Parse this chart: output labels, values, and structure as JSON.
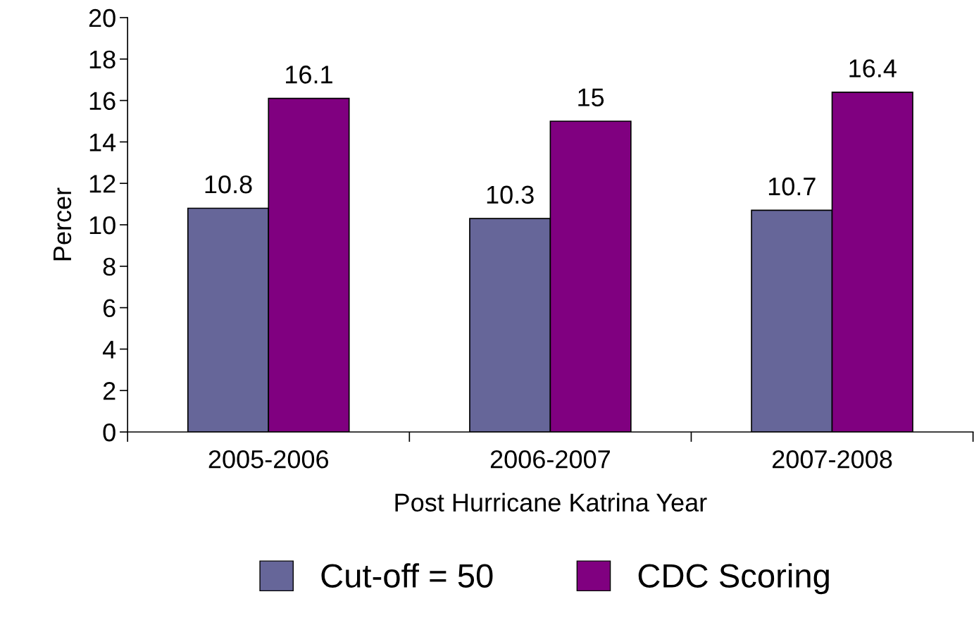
{
  "chart_data": {
    "type": "bar",
    "xlabel": "Post Hurricane Katrina Year",
    "ylabel": "Percer",
    "categories": [
      "2005-2006",
      "2006-2007",
      "2007-2008"
    ],
    "series": [
      {
        "name": "Cut-off = 50",
        "color": "#666699",
        "values": [
          10.8,
          10.3,
          10.7
        ]
      },
      {
        "name": "CDC Scoring",
        "color": "#800080",
        "values": [
          16.1,
          15,
          16.4
        ]
      }
    ],
    "ylim": [
      0,
      20
    ],
    "yticks": [
      0,
      2,
      4,
      6,
      8,
      10,
      12,
      14,
      16,
      18,
      20
    ],
    "data_labels": true,
    "legend": "bottom",
    "grid": false
  }
}
